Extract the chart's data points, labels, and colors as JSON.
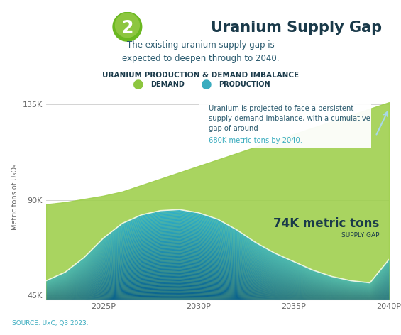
{
  "title": "Uranium Supply Gap",
  "subtitle": "The existing uranium supply gap is\nexpected to deepen through to 2040.",
  "chart_title": "URANIUM PRODUCTION & DEMAND IMBALANCE",
  "ylabel": "Metric tons of U₃O₈",
  "source": "SOURCE: UxC, Q3 2023.",
  "yticks": [
    45000,
    90000,
    135000
  ],
  "ytick_labels": [
    "45K",
    "90K",
    "135K"
  ],
  "xlim": [
    2022,
    2040
  ],
  "ylim": [
    43000,
    140000
  ],
  "years": [
    2022,
    2023,
    2024,
    2025,
    2026,
    2027,
    2028,
    2029,
    2030,
    2031,
    2032,
    2033,
    2034,
    2035,
    2036,
    2037,
    2038,
    2039,
    2040
  ],
  "demand": [
    88000,
    89000,
    90500,
    92000,
    94000,
    97000,
    100000,
    103000,
    106000,
    109000,
    112000,
    115000,
    118000,
    121000,
    124000,
    127000,
    130000,
    133000,
    136000
  ],
  "production": [
    52000,
    56000,
    63000,
    72000,
    79000,
    83000,
    85000,
    85500,
    84000,
    81000,
    76000,
    70000,
    65000,
    61000,
    57000,
    54000,
    52000,
    51000,
    62000
  ],
  "demand_color": "#9dcf4a",
  "production_color_top": "#2ab0d0",
  "production_color_bottom": "#005a8e",
  "annotation_text_normal": "Uranium is projected to face a persistent\nsupply-demand imbalance, with a cumulative\ngap of around ",
  "annotation_text_highlight": "680K metric tons by 2040.",
  "annotation_highlight_color": "#3aacbf",
  "annotation_text_color": "#2a5a6e",
  "gap_label": "74K metric tons",
  "gap_sublabel": "SUPPLY GAP",
  "gap_label_color": "#1a3a4a",
  "border_color": "#a8d8e8",
  "background_color": "#ffffff",
  "legend_demand_color": "#8dc63f",
  "legend_production_color": "#3aacbf",
  "xtick_labels": [
    "2025P",
    "2030P",
    "2035P",
    "2040P"
  ],
  "xtick_positions": [
    2025,
    2030,
    2035,
    2040
  ],
  "base_value": 43000
}
